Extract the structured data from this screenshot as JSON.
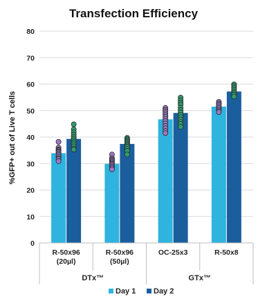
{
  "chart_data": {
    "type": "bar",
    "title": "Transfection Efficiency",
    "ylabel": "%GFP+ out of Live T cells",
    "xlabel": "",
    "ylim": [
      0,
      80
    ],
    "yticks": [
      0,
      10,
      20,
      30,
      40,
      50,
      60,
      70,
      80
    ],
    "grid": true,
    "legend_position": "bottom",
    "categories": [
      [
        "R-50x96",
        "(20µl)"
      ],
      [
        "R-50x96",
        "(50µl)"
      ],
      [
        "OC-25x3"
      ],
      [
        "R-50x8"
      ]
    ],
    "groups": [
      {
        "label": "DTx™",
        "span": [
          0,
          1
        ]
      },
      {
        "label": "GTx™",
        "span": [
          2,
          3
        ]
      }
    ],
    "series": [
      {
        "name": "Day 1",
        "color": "#2FB3DF",
        "dot_color": "#9B78C4",
        "values": [
          33.9,
          29.9,
          46.7,
          51.5
        ],
        "points": [
          [
            38.2,
            36.0,
            35.3,
            35.0,
            34.6,
            34.2,
            33.7,
            33.2,
            32.6,
            32.0,
            31.6,
            30.9
          ],
          [
            33.4,
            32.0,
            31.5,
            31.1,
            30.6,
            30.2,
            29.8,
            29.3,
            28.8,
            28.3,
            27.8
          ],
          [
            51.0,
            50.3,
            49.7,
            49.0,
            48.3,
            47.6,
            46.8,
            46.0,
            45.1,
            44.2,
            43.3,
            42.3,
            41.5
          ],
          [
            53.3,
            52.7,
            52.2,
            51.6,
            51.0,
            50.4,
            49.9,
            49.4
          ]
        ]
      },
      {
        "name": "Day 2",
        "color": "#1B5E9E",
        "dot_color": "#2E9E6C",
        "values": [
          39.3,
          37.4,
          49.1,
          57.2
        ],
        "points": [
          [
            44.8,
            42.9,
            41.8,
            40.9,
            40.1,
            39.4,
            38.7,
            38.0,
            37.3,
            36.5,
            35.7,
            35.3
          ],
          [
            39.7,
            39.2,
            38.7,
            38.3,
            37.8,
            37.3,
            36.8,
            36.3,
            35.6,
            34.8,
            33.4
          ],
          [
            54.9,
            53.9,
            53.0,
            52.2,
            51.1,
            50.2,
            49.3,
            48.4,
            47.5,
            46.6,
            45.7,
            45.0,
            43.9
          ],
          [
            59.9,
            59.2,
            58.6,
            57.9,
            57.2,
            56.6,
            56.0,
            55.3
          ]
        ]
      }
    ]
  }
}
